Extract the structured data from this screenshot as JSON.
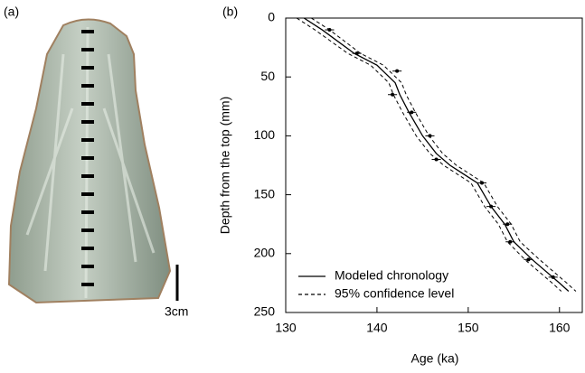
{
  "panel_a": {
    "label": "(a)",
    "scale_label": "3cm"
  },
  "chart_data": {
    "type": "line",
    "panel_label": "(b)",
    "x_label": "Age (ka)",
    "y_label": "Depth from the top (mm)",
    "xlim": [
      130,
      162.5
    ],
    "xticks": [
      130,
      140,
      150,
      160
    ],
    "ylim": [
      0,
      250
    ],
    "yticks": [
      0,
      50,
      100,
      150,
      200,
      250
    ],
    "y_inverted": true,
    "legend": "lower left",
    "series": [
      {
        "name": "Modeled chronology",
        "color": "#000000",
        "style": "solid",
        "x": [
          132,
          134,
          137.5,
          140,
          142,
          142.5,
          143.5,
          145,
          146.5,
          148,
          151,
          152.5,
          154,
          155,
          157,
          160,
          161
        ],
        "y": [
          0,
          10,
          30,
          40,
          55,
          65,
          80,
          100,
          115,
          125,
          140,
          160,
          175,
          190,
          205,
          225,
          232
        ]
      },
      {
        "name": "95% confidence level",
        "color": "#000000",
        "style": "dashed",
        "y": [
          0,
          10,
          30,
          40,
          55,
          65,
          80,
          100,
          115,
          125,
          140,
          160,
          175,
          190,
          205,
          225,
          232
        ],
        "x_lower": [
          131.2,
          133.2,
          136.8,
          139.3,
          141.3,
          141.8,
          142.8,
          144.3,
          145.8,
          147.3,
          150.3,
          151.8,
          153.3,
          154.3,
          156.2,
          159.2,
          160.2
        ],
        "x_upper": [
          132.8,
          134.8,
          138.2,
          140.7,
          142.7,
          143.2,
          144.2,
          145.7,
          147.2,
          148.7,
          151.7,
          153.2,
          154.7,
          155.7,
          157.8,
          160.8,
          161.8
        ]
      },
      {
        "type": "scatter",
        "color": "#000000",
        "x": [
          134.8,
          137.8,
          142.2,
          141.7,
          143.8,
          145.8,
          146.5,
          151.5,
          152.5,
          154.3,
          154.6,
          156.6,
          159.3
        ],
        "y": [
          10,
          30,
          45,
          65,
          80,
          100,
          120,
          140,
          160,
          175,
          190,
          205,
          220
        ],
        "x_err": [
          0.5,
          0.5,
          0.5,
          0.5,
          0.5,
          0.5,
          0.5,
          0.5,
          0.5,
          0.5,
          0.5,
          0.5,
          0.5
        ]
      }
    ]
  }
}
